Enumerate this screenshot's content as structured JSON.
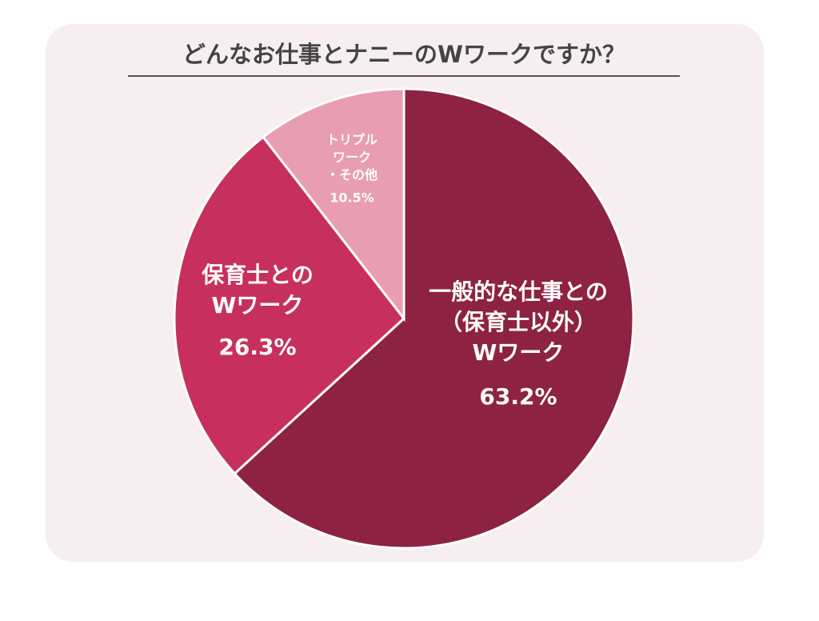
{
  "chart_data": {
    "type": "pie",
    "title": "どんなお仕事とナニーのWワークですか？",
    "categories": [
      "一般的な仕事との\n（保育士以外）\nWワーク",
      "保育士との\nWワーク",
      "トリプル\nワーク\n・その他"
    ],
    "values": [
      63.2,
      26.3,
      10.5
    ],
    "value_labels": [
      "63.2%",
      "26.3%",
      "10.5%"
    ],
    "colors": [
      "#8e2242",
      "#c7305e",
      "#e89db3"
    ]
  }
}
